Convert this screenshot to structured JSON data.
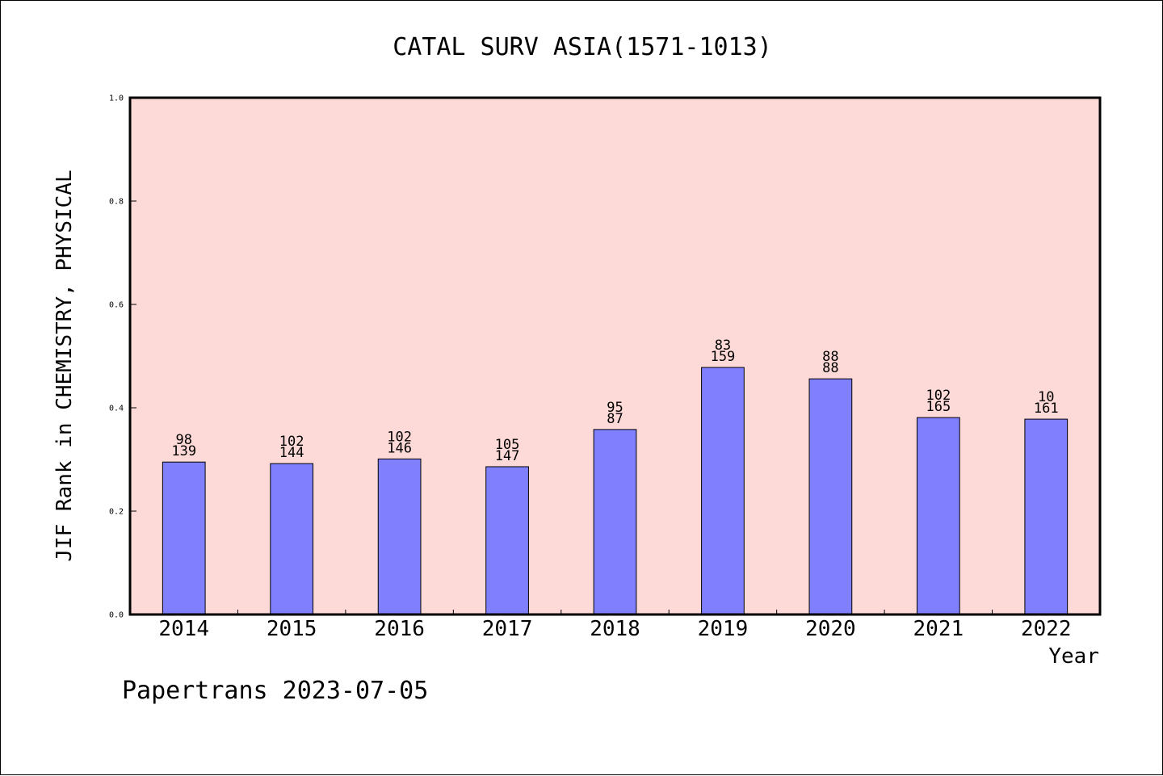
{
  "chart_data": {
    "type": "bar",
    "title": "CATAL SURV ASIA(1571-1013)",
    "xlabel": "Year",
    "ylabel": "JIF Rank in CHEMISTRY, PHYSICAL",
    "ylim": [
      0,
      1.0
    ],
    "yticks": [
      "0.0",
      "0.2",
      "0.4",
      "0.6",
      "0.8",
      "1.0"
    ],
    "categories": [
      "2014",
      "2015",
      "2016",
      "2017",
      "2018",
      "2019",
      "2020",
      "2021",
      "2022"
    ],
    "values": [
      0.295,
      0.292,
      0.301,
      0.286,
      0.358,
      0.478,
      0.456,
      0.381,
      0.378
    ],
    "labels_top": [
      "98",
      "102",
      "102",
      "105",
      "95",
      "83",
      "88",
      "102",
      "10"
    ],
    "labels_bottom": [
      "139",
      "144",
      "146",
      "147",
      "87",
      "159",
      "88",
      "165",
      "161"
    ],
    "grid": false,
    "colors": {
      "bar": "#8080ff",
      "plot_background": "#fddad7",
      "axis": "#000000"
    }
  },
  "footer": "Papertrans 2023-07-05"
}
